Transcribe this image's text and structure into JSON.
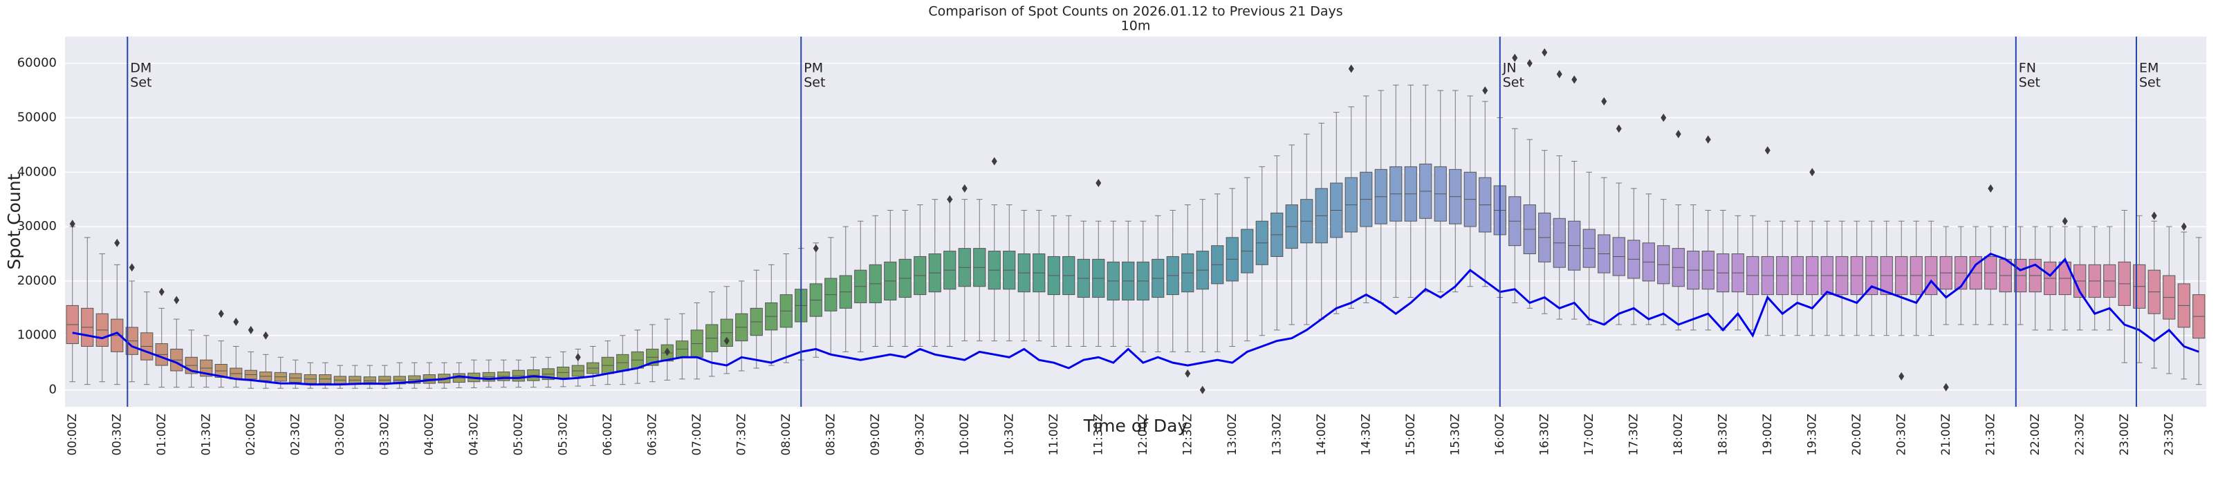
{
  "chart_data": {
    "type": "box",
    "title": "Comparison of Spot Counts on 2026.01.12 to Previous 21 Days",
    "subtitle": "10m",
    "x_label": "Time of Day",
    "y_label": "Spot Count",
    "categories": [
      "00:00Z",
      null,
      null,
      "00:30Z",
      null,
      null,
      "01:00Z",
      null,
      null,
      "01:30Z",
      null,
      null,
      "02:00Z",
      null,
      null,
      "02:30Z",
      null,
      null,
      "03:00Z",
      null,
      null,
      "03:30Z",
      null,
      null,
      "04:00Z",
      null,
      null,
      "04:30Z",
      null,
      null,
      "05:00Z",
      null,
      null,
      "05:30Z",
      null,
      null,
      "06:00Z",
      null,
      null,
      "06:30Z",
      null,
      null,
      "07:00Z",
      null,
      null,
      "07:30Z",
      null,
      null,
      "08:00Z",
      null,
      null,
      "08:30Z",
      null,
      null,
      "09:00Z",
      null,
      null,
      "09:30Z",
      null,
      null,
      "10:00Z",
      null,
      null,
      "10:30Z",
      null,
      null,
      "11:00Z",
      null,
      null,
      "11:30Z",
      null,
      null,
      "12:00Z",
      null,
      null,
      "12:30Z",
      null,
      null,
      "13:00Z",
      null,
      null,
      "13:30Z",
      null,
      null,
      "14:00Z",
      null,
      null,
      "14:30Z",
      null,
      null,
      "15:00Z",
      null,
      null,
      "15:30Z",
      null,
      null,
      "16:00Z",
      null,
      null,
      "16:30Z",
      null,
      null,
      "17:00Z",
      null,
      null,
      "17:30Z",
      null,
      null,
      "18:00Z",
      null,
      null,
      "18:30Z",
      null,
      null,
      "19:00Z",
      null,
      null,
      "19:30Z",
      null,
      null,
      "20:00Z",
      null,
      null,
      "20:30Z",
      null,
      null,
      "21:00Z",
      null,
      null,
      "21:30Z",
      null,
      null,
      "22:00Z",
      null,
      null,
      "22:30Z",
      null,
      null,
      "23:00Z",
      null,
      null,
      "23:30Z",
      null,
      null
    ],
    "boxes": {
      "whisker_low": [
        1500,
        1000,
        1500,
        1000,
        1500,
        1000,
        500,
        500,
        500,
        500,
        500,
        500,
        300,
        300,
        300,
        300,
        300,
        300,
        300,
        300,
        300,
        300,
        300,
        300,
        300,
        300,
        400,
        400,
        500,
        500,
        500,
        500,
        500,
        600,
        700,
        800,
        1000,
        1000,
        1200,
        1500,
        1800,
        2000,
        2000,
        2500,
        3000,
        3500,
        4000,
        4500,
        5000,
        5500,
        6000,
        6500,
        7000,
        7000,
        8000,
        8000,
        8000,
        8000,
        8000,
        8000,
        9000,
        9000,
        9000,
        9000,
        9000,
        9000,
        8000,
        8000,
        8000,
        8000,
        8000,
        8000,
        7000,
        7000,
        7000,
        7000,
        7000,
        7000,
        8000,
        9000,
        10000,
        11000,
        12000,
        12000,
        13000,
        14000,
        15000,
        16000,
        16000,
        17000,
        17000,
        18000,
        18000,
        18000,
        19000,
        19000,
        17000,
        16000,
        15000,
        14000,
        13000,
        13000,
        12000,
        12000,
        12000,
        12000,
        12000,
        12000,
        11000,
        11000,
        11000,
        11000,
        11000,
        11000,
        10000,
        10000,
        10000,
        10000,
        10000,
        10000,
        10000,
        10000,
        10000,
        10000,
        10000,
        10000,
        12000,
        12000,
        12000,
        12000,
        12000,
        12000,
        11000,
        11000,
        11000,
        11000,
        11000,
        11000,
        5000,
        5000,
        4000,
        3000,
        2000,
        1000
      ],
      "q1": [
        8500,
        8000,
        8000,
        7000,
        6500,
        5500,
        4500,
        3500,
        3000,
        2500,
        2300,
        2000,
        2000,
        1700,
        1600,
        1400,
        1200,
        1200,
        1100,
        1100,
        1000,
        1100,
        1100,
        1200,
        1200,
        1300,
        1400,
        1500,
        1600,
        1700,
        1600,
        1700,
        1900,
        2200,
        2500,
        3000,
        3000,
        3500,
        4000,
        4500,
        5300,
        6000,
        6000,
        7000,
        8000,
        9000,
        10000,
        11000,
        11500,
        12500,
        13500,
        14500,
        15000,
        16000,
        16000,
        16500,
        17000,
        17500,
        18000,
        18500,
        19000,
        19000,
        18500,
        18500,
        18000,
        18000,
        17500,
        17500,
        17000,
        17000,
        16500,
        16500,
        16500,
        17000,
        17500,
        18000,
        18500,
        19500,
        20000,
        21500,
        23000,
        24500,
        26000,
        27000,
        27000,
        28000,
        29000,
        30000,
        30500,
        31000,
        31000,
        31500,
        31000,
        30500,
        30000,
        29000,
        28500,
        26500,
        25000,
        23500,
        22500,
        22000,
        22500,
        21500,
        21000,
        20500,
        20000,
        19500,
        19000,
        18500,
        18500,
        18000,
        18000,
        17500,
        17500,
        17500,
        17500,
        17500,
        17500,
        17500,
        17500,
        17500,
        17500,
        17500,
        17500,
        17500,
        18500,
        18500,
        18500,
        18500,
        18000,
        18000,
        18000,
        17500,
        17500,
        17000,
        17000,
        17000,
        15500,
        15000,
        14000,
        13000,
        11500,
        9500
      ],
      "median": [
        12000,
        11500,
        11000,
        10000,
        9000,
        8000,
        6500,
        5500,
        4500,
        4000,
        3500,
        3000,
        2800,
        2500,
        2400,
        2200,
        2000,
        2000,
        1800,
        1800,
        1700,
        1800,
        1800,
        1900,
        2000,
        2100,
        2200,
        2300,
        2400,
        2500,
        2600,
        2700,
        2900,
        3200,
        3500,
        4000,
        4500,
        5000,
        5500,
        6000,
        6800,
        7500,
        8500,
        9500,
        10500,
        11500,
        12500,
        13500,
        14500,
        15500,
        16500,
        17500,
        18000,
        19000,
        19500,
        20000,
        20500,
        21000,
        21500,
        22000,
        22500,
        22500,
        22000,
        22000,
        21500,
        21500,
        21000,
        21000,
        20500,
        20500,
        20000,
        20000,
        20000,
        20500,
        21000,
        21500,
        22000,
        23000,
        24000,
        25500,
        27000,
        28500,
        30000,
        31000,
        32000,
        33000,
        34000,
        35000,
        35500,
        36000,
        36000,
        36500,
        36000,
        35500,
        35000,
        34000,
        33000,
        31000,
        29500,
        28000,
        27000,
        26500,
        26000,
        25000,
        24500,
        24000,
        23500,
        23000,
        22500,
        22000,
        22000,
        21500,
        21500,
        21000,
        21000,
        21000,
        21000,
        21000,
        21000,
        21000,
        21000,
        21000,
        21000,
        21000,
        21000,
        21000,
        21500,
        21500,
        21500,
        21500,
        21000,
        21000,
        21000,
        20500,
        20500,
        20000,
        20000,
        20000,
        19500,
        19000,
        18000,
        17000,
        15500,
        13500
      ],
      "q3": [
        15500,
        15000,
        14000,
        13000,
        11500,
        10500,
        8500,
        7500,
        6000,
        5500,
        4700,
        4000,
        3600,
        3300,
        3200,
        3000,
        2800,
        2800,
        2500,
        2500,
        2400,
        2500,
        2500,
        2600,
        2800,
        2900,
        3000,
        3100,
        3200,
        3300,
        3600,
        3700,
        3900,
        4200,
        4500,
        5000,
        6000,
        6500,
        7000,
        7500,
        8300,
        9000,
        11000,
        12000,
        13000,
        14000,
        15000,
        16000,
        17500,
        18500,
        19500,
        20500,
        21000,
        22000,
        23000,
        23500,
        24000,
        24500,
        25000,
        25500,
        26000,
        26000,
        25500,
        25500,
        25000,
        25000,
        24500,
        24500,
        24000,
        24000,
        23500,
        23500,
        23500,
        24000,
        24500,
        25000,
        25500,
        26500,
        28000,
        29500,
        31000,
        32500,
        34000,
        35000,
        37000,
        38000,
        39000,
        40000,
        40500,
        41000,
        41000,
        41500,
        41000,
        40500,
        40000,
        39000,
        37500,
        35500,
        34000,
        32500,
        31500,
        31000,
        29500,
        28500,
        28000,
        27500,
        27000,
        26500,
        26000,
        25500,
        25500,
        25000,
        25000,
        24500,
        24500,
        24500,
        24500,
        24500,
        24500,
        24500,
        24500,
        24500,
        24500,
        24500,
        24500,
        24500,
        24500,
        24500,
        24500,
        24500,
        24000,
        24000,
        24000,
        23500,
        23500,
        23000,
        23000,
        23000,
        23500,
        23000,
        22000,
        21000,
        19500,
        17500
      ],
      "whisker_high": [
        30000,
        28000,
        25000,
        23000,
        20000,
        18000,
        15000,
        13000,
        11000,
        10000,
        9000,
        8000,
        7000,
        6500,
        6000,
        5500,
        5000,
        5000,
        4500,
        4500,
        4500,
        4500,
        5000,
        5000,
        5000,
        5000,
        5000,
        5500,
        5500,
        5500,
        5500,
        6000,
        6000,
        7000,
        7500,
        8000,
        9000,
        10000,
        11000,
        12000,
        13000,
        14000,
        16000,
        18000,
        19000,
        20000,
        22000,
        23000,
        25000,
        26000,
        27000,
        28000,
        30000,
        31000,
        32000,
        33000,
        33000,
        34000,
        35000,
        35000,
        35000,
        35000,
        34000,
        34000,
        33000,
        33000,
        32000,
        32000,
        31000,
        31000,
        31000,
        31000,
        31000,
        32000,
        33000,
        34000,
        35000,
        36000,
        37000,
        39000,
        41000,
        43000,
        45000,
        47000,
        49000,
        51000,
        52000,
        54000,
        55000,
        56000,
        56000,
        56000,
        55000,
        55000,
        54000,
        53000,
        50000,
        48000,
        46000,
        44000,
        43000,
        42000,
        40000,
        39000,
        38000,
        37000,
        36000,
        35000,
        34000,
        34000,
        33000,
        33000,
        32000,
        32000,
        31000,
        31000,
        31000,
        31000,
        31000,
        31000,
        31000,
        31000,
        31000,
        31000,
        31000,
        31000,
        30000,
        30000,
        30000,
        30000,
        30000,
        30000,
        30000,
        30000,
        30000,
        30000,
        30000,
        30000,
        33000,
        32000,
        31000,
        30000,
        29000,
        28000
      ]
    },
    "outliers": {
      "index": [
        0,
        3,
        4,
        6,
        7,
        10,
        11,
        12,
        13,
        34,
        40,
        44,
        50,
        59,
        60,
        62,
        69,
        75,
        76,
        86,
        95,
        97,
        98,
        99,
        100,
        101,
        103,
        104,
        107,
        108,
        110,
        114,
        117,
        123,
        126,
        129,
        134,
        140,
        142
      ],
      "values": [
        30500,
        27000,
        22500,
        18000,
        16500,
        14000,
        12500,
        11000,
        10000,
        6000,
        7000,
        9000,
        26000,
        35000,
        37000,
        42000,
        38000,
        3000,
        0,
        59000,
        55000,
        61000,
        60000,
        62000,
        58000,
        57000,
        53000,
        48000,
        50000,
        47000,
        46000,
        44000,
        40000,
        2500,
        500,
        37000,
        31000,
        32000,
        30000
      ]
    },
    "line": {
      "color": "#0000ee",
      "values": [
        10500,
        10000,
        9500,
        10500,
        8000,
        7000,
        6000,
        5000,
        3500,
        3000,
        2500,
        2000,
        1800,
        1500,
        1200,
        1200,
        1000,
        1000,
        1000,
        1100,
        1200,
        1100,
        1300,
        1500,
        1800,
        2000,
        2500,
        2200,
        2000,
        2200,
        2200,
        2500,
        2300,
        2000,
        2200,
        2500,
        3000,
        3500,
        4000,
        5000,
        5500,
        6000,
        6000,
        5000,
        4500,
        6000,
        5500,
        5000,
        6000,
        7000,
        7500,
        6500,
        6000,
        5500,
        6000,
        6500,
        6000,
        7500,
        6500,
        6000,
        5500,
        7000,
        6500,
        6000,
        7500,
        5500,
        5000,
        4000,
        5500,
        6000,
        5000,
        7500,
        5000,
        6000,
        5000,
        4500,
        5000,
        5500,
        5000,
        7000,
        8000,
        9000,
        9500,
        11000,
        13000,
        15000,
        16000,
        17500,
        16000,
        14000,
        16000,
        18500,
        17000,
        19000,
        22000,
        20000,
        18000,
        18500,
        16000,
        17000,
        15000,
        16000,
        13000,
        12000,
        14000,
        15000,
        13000,
        14000,
        12000,
        13000,
        14000,
        11000,
        14000,
        10000,
        17000,
        14000,
        16000,
        15000,
        18000,
        17000,
        16000,
        19000,
        18000,
        17000,
        16000,
        20000,
        17000,
        19000,
        23000,
        25000,
        24000,
        22000,
        23000,
        21000,
        24000,
        18000,
        14000,
        15000,
        12000,
        11000,
        9000,
        11000,
        8000,
        7000
      ]
    },
    "annotations": [
      {
        "lines": [
          "DM",
          "Set"
        ],
        "x": 3.7
      },
      {
        "lines": [
          "PM",
          "Set"
        ],
        "x": 49
      },
      {
        "lines": [
          "JN",
          "Set"
        ],
        "x": 96
      },
      {
        "lines": [
          "FN",
          "Set"
        ],
        "x": 130.7
      },
      {
        "lines": [
          "EM",
          "Set"
        ],
        "x": 138.8
      }
    ],
    "annotation_color": "#2244aa",
    "palette": [
      "#d98d8a",
      "#b9976a",
      "#9c9e5c",
      "#7da35a",
      "#5fa36e",
      "#55a08f",
      "#5c9ab0",
      "#8aa0cf",
      "#a89ad6",
      "#c38fd0",
      "#d38cb8",
      "#d98d9a"
    ],
    "ylim": [
      -3100,
      64900
    ],
    "yticks": [
      0,
      10000,
      20000,
      30000,
      40000,
      50000,
      60000
    ],
    "grid": true
  }
}
